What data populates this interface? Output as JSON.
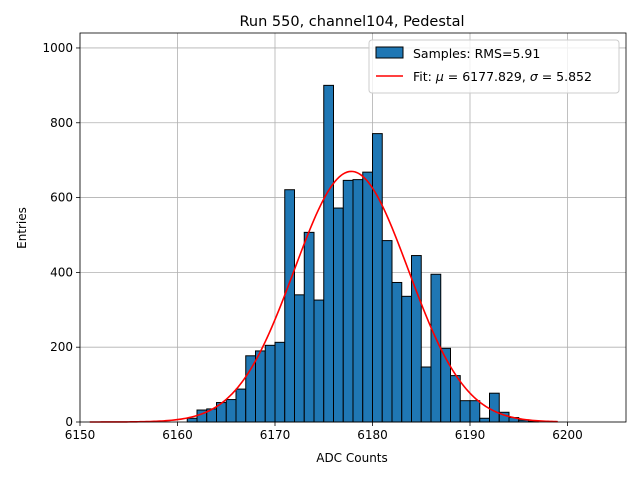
{
  "chart_data": {
    "type": "bar",
    "title": "Run 550, channel104, Pedestal",
    "xlabel": "ADC Counts",
    "ylabel": "Entries",
    "xlim": [
      6150,
      6206
    ],
    "ylim": [
      0,
      1040
    ],
    "xticks": [
      6150,
      6160,
      6170,
      6180,
      6190,
      6200
    ],
    "yticks": [
      0,
      200,
      400,
      600,
      800,
      1000
    ],
    "grid": true,
    "legend_position": "top-right",
    "bin_width": 1,
    "histogram": {
      "name": "Samples: RMS=5.91",
      "color": "#1f77b4",
      "bins": [
        {
          "x": 6161,
          "count": 10
        },
        {
          "x": 6162,
          "count": 32
        },
        {
          "x": 6163,
          "count": 35
        },
        {
          "x": 6164,
          "count": 52
        },
        {
          "x": 6165,
          "count": 60
        },
        {
          "x": 6166,
          "count": 88
        },
        {
          "x": 6167,
          "count": 177
        },
        {
          "x": 6168,
          "count": 190
        },
        {
          "x": 6169,
          "count": 205
        },
        {
          "x": 6170,
          "count": 213
        },
        {
          "x": 6171,
          "count": 621
        },
        {
          "x": 6172,
          "count": 340
        },
        {
          "x": 6173,
          "count": 507
        },
        {
          "x": 6174,
          "count": 326
        },
        {
          "x": 6175,
          "count": 900
        },
        {
          "x": 6176,
          "count": 572
        },
        {
          "x": 6177,
          "count": 646
        },
        {
          "x": 6178,
          "count": 648
        },
        {
          "x": 6179,
          "count": 668
        },
        {
          "x": 6180,
          "count": 771
        },
        {
          "x": 6181,
          "count": 485
        },
        {
          "x": 6182,
          "count": 373
        },
        {
          "x": 6183,
          "count": 336
        },
        {
          "x": 6184,
          "count": 445
        },
        {
          "x": 6185,
          "count": 147
        },
        {
          "x": 6186,
          "count": 395
        },
        {
          "x": 6187,
          "count": 197
        },
        {
          "x": 6188,
          "count": 124
        },
        {
          "x": 6189,
          "count": 57
        },
        {
          "x": 6190,
          "count": 57
        },
        {
          "x": 6191,
          "count": 10
        },
        {
          "x": 6192,
          "count": 77
        },
        {
          "x": 6193,
          "count": 26
        },
        {
          "x": 6194,
          "count": 12
        },
        {
          "x": 6195,
          "count": 5
        },
        {
          "x": 6196,
          "count": 2
        }
      ]
    },
    "fit": {
      "name_prefix": "Fit: ",
      "mu_symbol": "μ",
      "mu_text": " = 6177.829, ",
      "sigma_symbol": "σ",
      "sigma_text": " = 5.852",
      "color": "#ff0000",
      "mu": 6177.829,
      "sigma": 5.852,
      "amplitude": 670,
      "x_range": [
        6151,
        6199
      ]
    }
  }
}
